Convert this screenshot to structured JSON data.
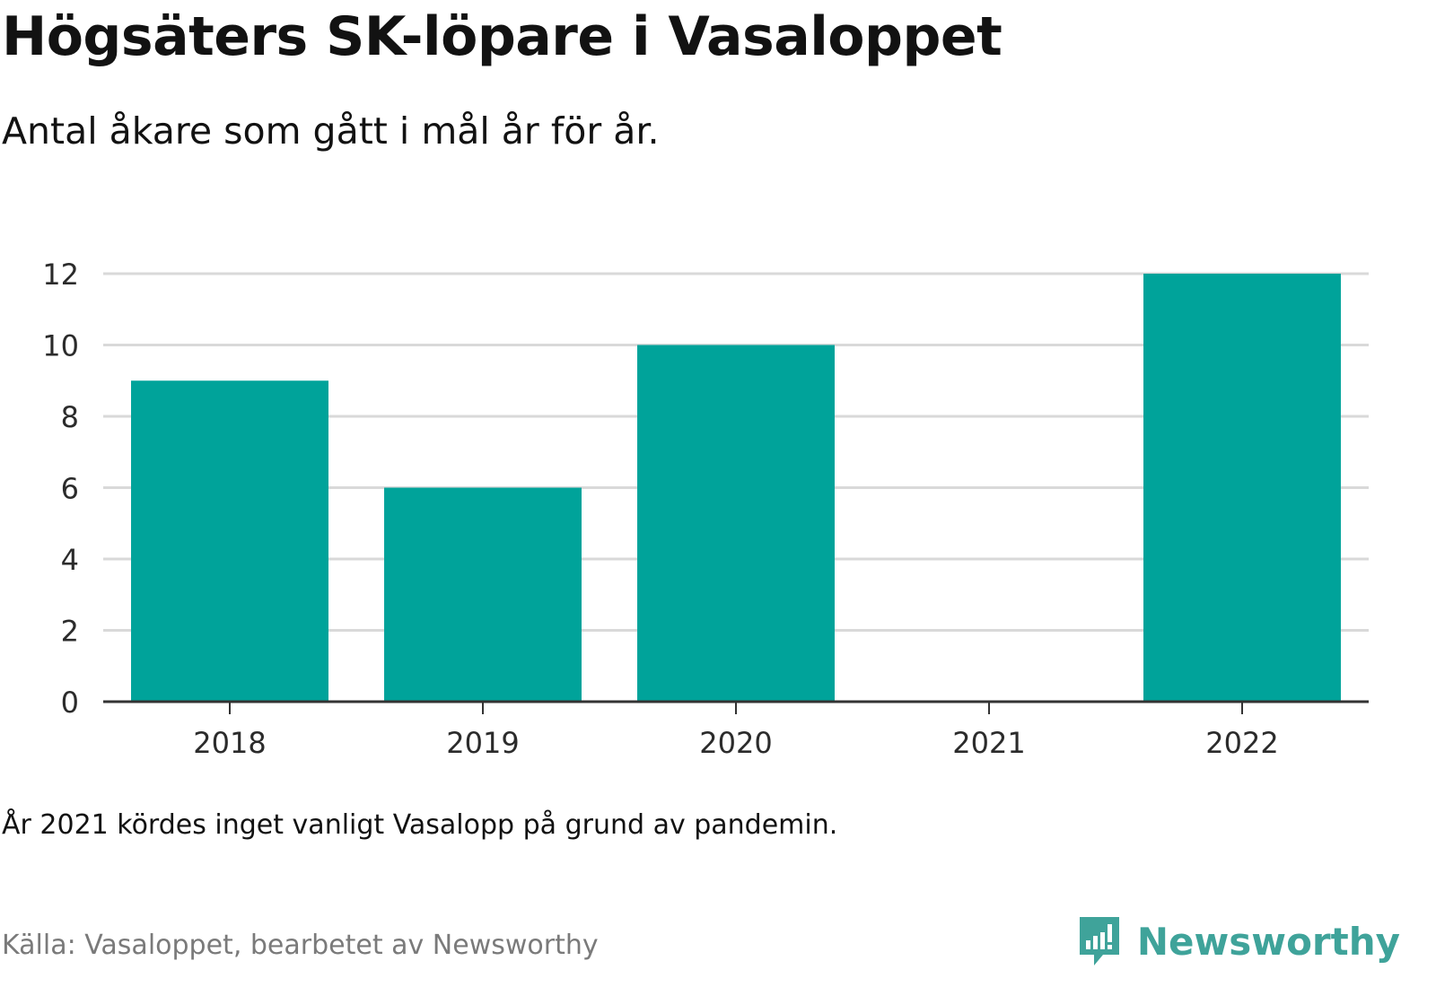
{
  "title": "Högsäters SK-löpare i Vasaloppet",
  "subtitle": "Antal åkare som gått i mål år för år.",
  "note": "År 2021 kördes inget vanligt Vasalopp på grund av pandemin.",
  "source": "Källa: Vasaloppet, bearbetet av Newsworthy",
  "brand": {
    "name": "Newsworthy",
    "icon": "newsworthy-logo-icon"
  },
  "colors": {
    "bar": "#00a39a",
    "grid": "#d9d9d9",
    "axis": "#333333",
    "brand": "#3fa39a"
  },
  "chart_data": {
    "type": "bar",
    "title": "",
    "xlabel": "",
    "ylabel": "",
    "categories": [
      "2018",
      "2019",
      "2020",
      "2021",
      "2022"
    ],
    "values": [
      9,
      6,
      10,
      0,
      12
    ],
    "ylim": [
      0,
      12
    ],
    "yticks": [
      "0",
      "2",
      "4",
      "6",
      "8",
      "10",
      "12"
    ],
    "grid": true
  }
}
